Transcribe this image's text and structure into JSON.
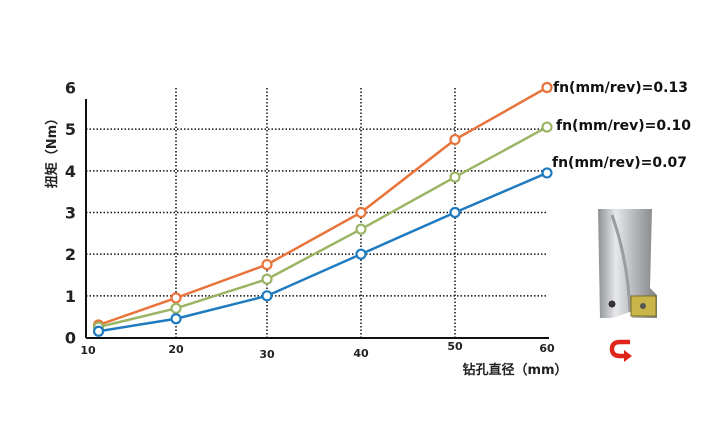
{
  "chart_data": {
    "type": "line",
    "title": "",
    "xlabel": "钻孔直径（mm）",
    "ylabel": "扭矩（Nm）",
    "xlim": [
      10,
      60
    ],
    "ylim": [
      0,
      6
    ],
    "x_ticks": [
      "10",
      "20",
      "30",
      "40",
      "50",
      "60"
    ],
    "y_ticks": [
      "0",
      "1",
      "2",
      "3",
      "4",
      "5",
      "6"
    ],
    "grid": "dotted",
    "legend": "right, next to line ends",
    "x": [
      11.2,
      20,
      30,
      40,
      50,
      60
    ],
    "series": [
      {
        "name": "fn(mm/rev)=0.13",
        "color": "#e8743b",
        "values": [
          0.3,
          0.95,
          1.75,
          3.0,
          4.75,
          6.0
        ]
      },
      {
        "name": "fn(mm/rev)=0.10",
        "color": "#9bb565",
        "values": [
          0.25,
          0.7,
          1.4,
          2.6,
          3.85,
          5.05
        ]
      },
      {
        "name": "fn(mm/rev)=0.07",
        "color": "#1f7bbf",
        "values": [
          0.15,
          0.45,
          1.0,
          2.0,
          3.0,
          3.95
        ]
      }
    ]
  },
  "illustration": {
    "tool": "drill-image",
    "rotation": "rotation-arrow-icon",
    "arrow_color": "#e0251b"
  }
}
